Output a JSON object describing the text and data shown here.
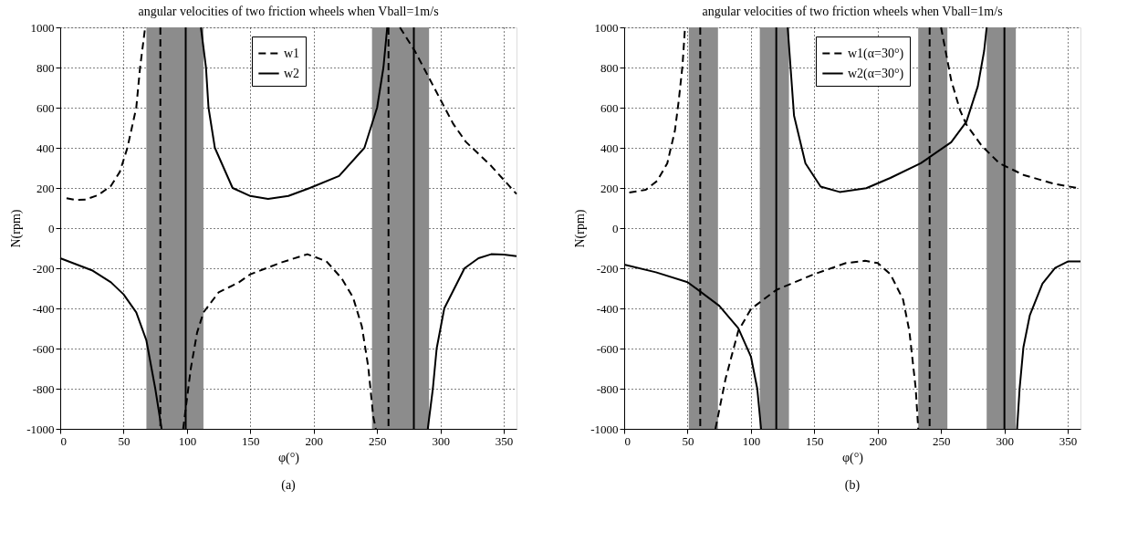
{
  "chart_data": [
    {
      "type": "line",
      "title": "angular velocities of two friction wheels when Vball=1m/s",
      "xlabel": "φ(°)",
      "ylabel": "N(rpm)",
      "annotations": [
        "(a)"
      ],
      "xlim": [
        0,
        360
      ],
      "ylim": [
        -1000,
        1000
      ],
      "xticks": [
        0,
        50,
        100,
        150,
        200,
        250,
        300,
        350
      ],
      "yticks": [
        -1000,
        -800,
        -600,
        -400,
        -200,
        0,
        200,
        400,
        600,
        800,
        1000
      ],
      "grid": true,
      "legend": "top",
      "marker": "none",
      "series": [
        {
          "name": "w1",
          "color": "#000000",
          "line_style": "dashed",
          "x": [
            5,
            12,
            20,
            30,
            40,
            47,
            53,
            60,
            63,
            67,
            null,
            97,
            103,
            108,
            113,
            125,
            141,
            150,
            175,
            195,
            210,
            222,
            231,
            238,
            243,
            247,
            249,
            null,
            268,
            280,
            290,
            300,
            310,
            320,
            340,
            360
          ],
          "values": [
            149,
            140,
            142,
            165,
            210,
            280,
            400,
            600,
            800,
            1000,
            null,
            -1000,
            -700,
            -520,
            -420,
            -320,
            -270,
            -230,
            -170,
            -130,
            -165,
            -250,
            -345,
            -490,
            -690,
            -940,
            -1000,
            null,
            1000,
            880,
            760,
            640,
            520,
            430,
            310,
            170
          ]
        },
        {
          "name": "w2",
          "color": "#000000",
          "line_style": "solid",
          "x": [
            0,
            25,
            40,
            50,
            60,
            68,
            75,
            80,
            null,
            111,
            115,
            117,
            122,
            136,
            150,
            164,
            180,
            197,
            220,
            240,
            250,
            255,
            258,
            null,
            290,
            294,
            297,
            303,
            319,
            330,
            340,
            350,
            360
          ],
          "values": [
            -150,
            -210,
            -270,
            -330,
            -420,
            -560,
            -800,
            -1000,
            null,
            1000,
            800,
            600,
            400,
            200,
            160,
            145,
            160,
            200,
            260,
            400,
            600,
            800,
            1000,
            null,
            -1000,
            -800,
            -600,
            -400,
            -200,
            -150,
            -130,
            -132,
            -140
          ]
        }
      ],
      "bands": [
        {
          "axis": "x",
          "from": 68,
          "to": 113,
          "color": "#8c8c8c"
        },
        {
          "axis": "x",
          "from": 246,
          "to": 291,
          "color": "#8c8c8c"
        }
      ],
      "ref_lines": [
        {
          "axis": "x",
          "value": 79,
          "line_style": "dashed",
          "color": "#000000"
        },
        {
          "axis": "x",
          "value": 99,
          "line_style": "solid",
          "color": "#000000"
        },
        {
          "axis": "x",
          "value": 259,
          "line_style": "dashed",
          "color": "#000000"
        },
        {
          "axis": "x",
          "value": 279,
          "line_style": "solid",
          "color": "#000000"
        }
      ]
    },
    {
      "type": "line",
      "title": "angular velocities of two friction wheels when Vball=1m/s",
      "xlabel": "φ(°)",
      "ylabel": "N(rpm)",
      "annotations": [
        "(b)"
      ],
      "xlim": [
        0,
        360
      ],
      "ylim": [
        -1000,
        1000
      ],
      "xticks": [
        0,
        50,
        100,
        150,
        200,
        250,
        300,
        350
      ],
      "yticks": [
        -1000,
        -800,
        -600,
        -400,
        -200,
        0,
        200,
        400,
        600,
        800,
        1000
      ],
      "grid": true,
      "legend": "top",
      "marker": "none",
      "series": [
        {
          "name": "w1(α=30°)",
          "color": "#000000",
          "line_style": "dashed",
          "x": [
            4,
            17,
            26,
            34,
            40,
            43,
            46,
            48,
            null,
            72,
            80,
            90,
            100,
            120,
            150,
            175,
            190,
            200,
            210,
            220,
            225,
            230,
            232,
            null,
            250,
            258,
            265,
            270,
            282,
            296,
            315,
            339,
            358
          ],
          "values": [
            177,
            191,
            235,
            323,
            485,
            633,
            809,
            1000,
            null,
            -1000,
            -750,
            -513,
            -403,
            -308,
            -229,
            -174,
            -163,
            -174,
            -229,
            -355,
            -513,
            -798,
            -1000,
            null,
            1000,
            737,
            587,
            516,
            411,
            323,
            265,
            221,
            199
          ]
        },
        {
          "name": "w2(α=30°)",
          "color": "#000000",
          "line_style": "solid",
          "x": [
            0,
            25,
            50,
            75,
            90,
            100,
            105,
            108,
            null,
            129,
            134,
            143,
            155,
            170,
            191,
            210,
            234,
            258,
            270,
            279,
            284,
            286,
            null,
            310,
            312,
            315,
            320,
            330,
            340,
            350,
            360
          ],
          "values": [
            -182,
            -220,
            -269,
            -387,
            -498,
            -640,
            -800,
            -1000,
            null,
            1000,
            560,
            323,
            207,
            180,
            199,
            250,
            323,
            428,
            530,
            706,
            883,
            1000,
            null,
            -1000,
            -798,
            -593,
            -435,
            -277,
            -198,
            -166,
            -166
          ]
        }
      ],
      "bands": [
        {
          "axis": "x",
          "from": 51,
          "to": 74,
          "color": "#8c8c8c"
        },
        {
          "axis": "x",
          "from": 107,
          "to": 130,
          "color": "#8c8c8c"
        },
        {
          "axis": "x",
          "from": 232,
          "to": 255,
          "color": "#8c8c8c"
        },
        {
          "axis": "x",
          "from": 286,
          "to": 309,
          "color": "#8c8c8c"
        }
      ],
      "ref_lines": [
        {
          "axis": "x",
          "value": 60,
          "line_style": "dashed",
          "color": "#000000"
        },
        {
          "axis": "x",
          "value": 120,
          "line_style": "solid",
          "color": "#000000"
        },
        {
          "axis": "x",
          "value": 241,
          "line_style": "dashed",
          "color": "#000000"
        },
        {
          "axis": "x",
          "value": 300,
          "line_style": "solid",
          "color": "#000000"
        }
      ]
    }
  ]
}
